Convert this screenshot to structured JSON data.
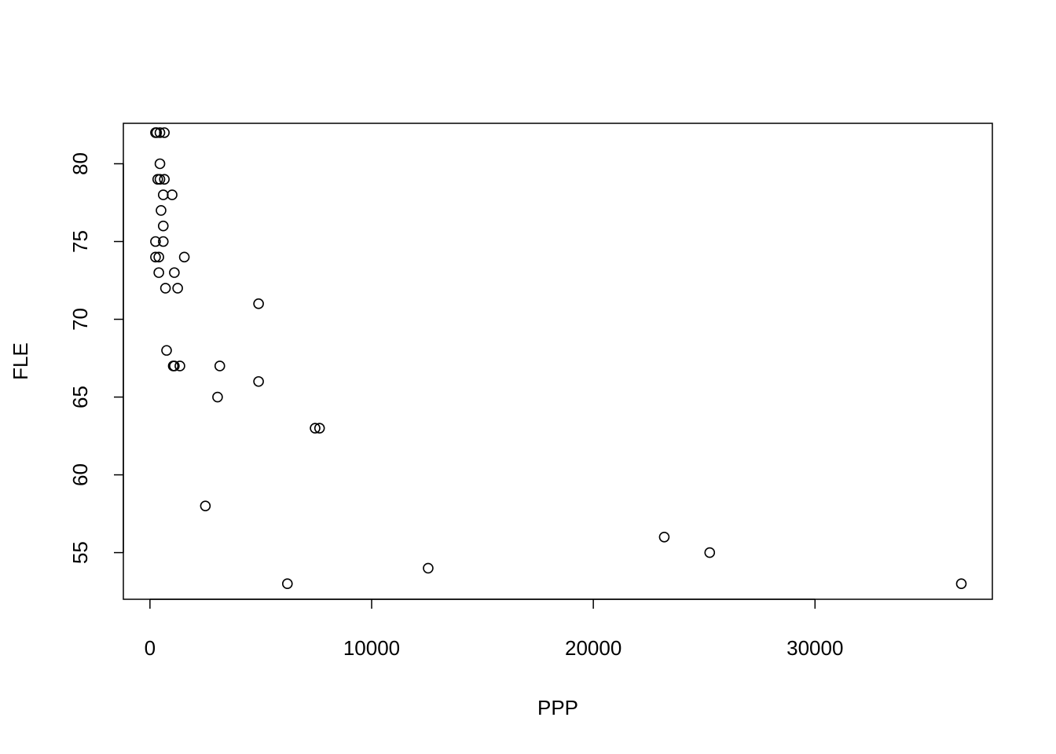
{
  "chart_data": {
    "type": "scatter",
    "xlabel": "PPP",
    "ylabel": "FLE",
    "xlim": [
      -1200,
      38000
    ],
    "ylim": [
      52,
      82.6
    ],
    "x_ticks": [
      0,
      10000,
      20000,
      30000
    ],
    "y_ticks": [
      55,
      60,
      65,
      70,
      75,
      80
    ],
    "grid": false,
    "legend": "none",
    "colors": {
      "points": "#000000",
      "background": "#ffffff"
    },
    "points": [
      {
        "x": 250,
        "y": 82
      },
      {
        "x": 300,
        "y": 82
      },
      {
        "x": 450,
        "y": 82
      },
      {
        "x": 650,
        "y": 82
      },
      {
        "x": 450,
        "y": 80
      },
      {
        "x": 350,
        "y": 79
      },
      {
        "x": 450,
        "y": 79
      },
      {
        "x": 650,
        "y": 79
      },
      {
        "x": 600,
        "y": 78
      },
      {
        "x": 1000,
        "y": 78
      },
      {
        "x": 500,
        "y": 77
      },
      {
        "x": 600,
        "y": 76
      },
      {
        "x": 250,
        "y": 75
      },
      {
        "x": 600,
        "y": 75
      },
      {
        "x": 250,
        "y": 74
      },
      {
        "x": 400,
        "y": 74
      },
      {
        "x": 1550,
        "y": 74
      },
      {
        "x": 400,
        "y": 73
      },
      {
        "x": 1100,
        "y": 73
      },
      {
        "x": 700,
        "y": 72
      },
      {
        "x": 1250,
        "y": 72
      },
      {
        "x": 4900,
        "y": 71
      },
      {
        "x": 750,
        "y": 68
      },
      {
        "x": 1050,
        "y": 67
      },
      {
        "x": 1100,
        "y": 67
      },
      {
        "x": 1350,
        "y": 67
      },
      {
        "x": 3150,
        "y": 67
      },
      {
        "x": 4900,
        "y": 66
      },
      {
        "x": 3050,
        "y": 65
      },
      {
        "x": 7450,
        "y": 63
      },
      {
        "x": 7650,
        "y": 63
      },
      {
        "x": 2500,
        "y": 58
      },
      {
        "x": 23200,
        "y": 56
      },
      {
        "x": 25250,
        "y": 55
      },
      {
        "x": 12550,
        "y": 54
      },
      {
        "x": 6200,
        "y": 53
      },
      {
        "x": 36600,
        "y": 53
      }
    ]
  }
}
